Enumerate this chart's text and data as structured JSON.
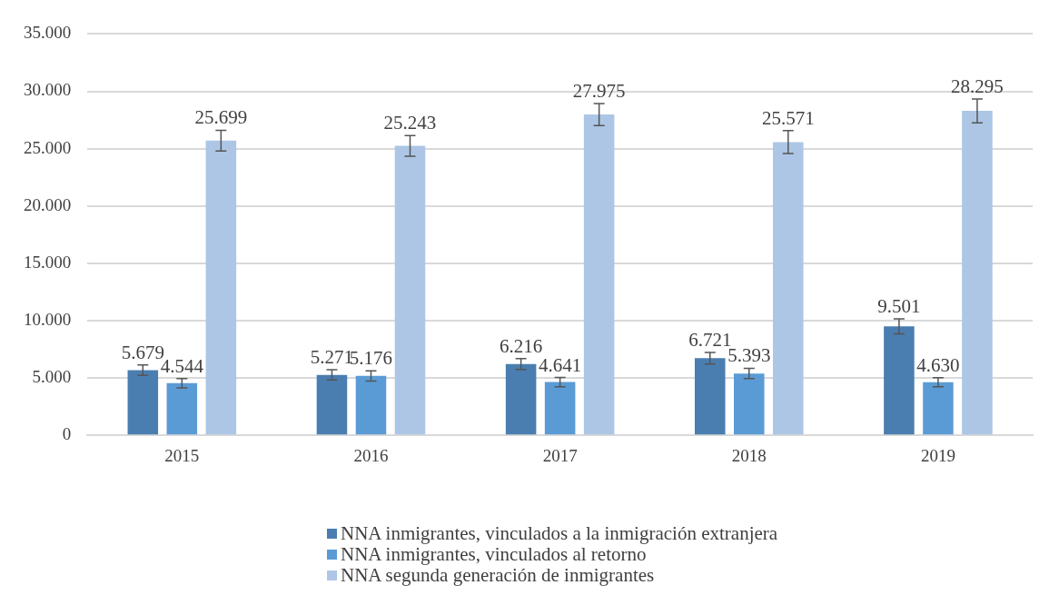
{
  "chart_data": {
    "type": "bar",
    "categories": [
      "2015",
      "2016",
      "2017",
      "2018",
      "2019"
    ],
    "series": [
      {
        "name": "NNA inmigrantes, vinculados a la inmigración extranjera",
        "color": "#4a7eb0",
        "values": [
          5679,
          5271,
          6216,
          6721,
          9501
        ],
        "errors": [
          450,
          450,
          470,
          500,
          650
        ],
        "value_labels": [
          "5.679",
          "5.271",
          "6.216",
          "6.721",
          "9.501"
        ]
      },
      {
        "name": "NNA inmigrantes, vinculados al retorno",
        "color": "#5b9bd5",
        "values": [
          4544,
          5176,
          4641,
          5393,
          4630
        ],
        "errors": [
          400,
          450,
          400,
          450,
          400
        ],
        "value_labels": [
          "4.544",
          "5.176",
          "4.641",
          "5.393",
          "4.630"
        ]
      },
      {
        "name": "NNA segunda generación de inmigrantes",
        "color": "#adc6e5",
        "values": [
          25699,
          25243,
          27975,
          25571,
          28295
        ],
        "errors": [
          900,
          900,
          960,
          1000,
          1040
        ],
        "value_labels": [
          "25.699",
          "25.243",
          "27.975",
          "25.571",
          "28.295"
        ]
      }
    ],
    "ylim": [
      0,
      35000
    ],
    "yticks": [
      {
        "value": 0,
        "label": "0"
      },
      {
        "value": 5000,
        "label": "5.000"
      },
      {
        "value": 10000,
        "label": "10.000"
      },
      {
        "value": 15000,
        "label": "15.000"
      },
      {
        "value": 20000,
        "label": "20.000"
      },
      {
        "value": 25000,
        "label": "25.000"
      },
      {
        "value": 30000,
        "label": "30.000"
      },
      {
        "value": 35000,
        "label": "35.000"
      }
    ],
    "grid": "y",
    "legend": "bottom"
  }
}
